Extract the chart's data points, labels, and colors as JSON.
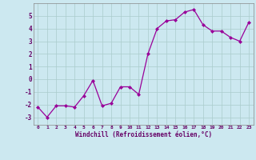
{
  "x": [
    0,
    1,
    2,
    3,
    4,
    5,
    6,
    7,
    8,
    9,
    10,
    11,
    12,
    13,
    14,
    15,
    16,
    17,
    18,
    19,
    20,
    21,
    22,
    23
  ],
  "y": [
    -2.2,
    -3.0,
    -2.1,
    -2.1,
    -2.2,
    -1.3,
    -0.1,
    -2.1,
    -1.9,
    -0.6,
    -0.6,
    -1.2,
    2.0,
    4.0,
    4.6,
    4.7,
    5.3,
    5.5,
    4.3,
    3.8,
    3.8,
    3.3,
    3.0,
    4.5
  ],
  "xlabel": "Windchill (Refroidissement éolien,°C)",
  "xlim": [
    -0.5,
    23.5
  ],
  "ylim": [
    -3.6,
    6.0
  ],
  "yticks": [
    -3,
    -2,
    -1,
    0,
    1,
    2,
    3,
    4,
    5
  ],
  "xticks": [
    0,
    1,
    2,
    3,
    4,
    5,
    6,
    7,
    8,
    9,
    10,
    11,
    12,
    13,
    14,
    15,
    16,
    17,
    18,
    19,
    20,
    21,
    22,
    23
  ],
  "line_color": "#990099",
  "marker": "D",
  "marker_size": 2.0,
  "bg_color": "#cce8f0",
  "grid_color": "#aacccc",
  "axis_color": "#660066",
  "tick_color": "#660066",
  "xlabel_color": "#660066"
}
